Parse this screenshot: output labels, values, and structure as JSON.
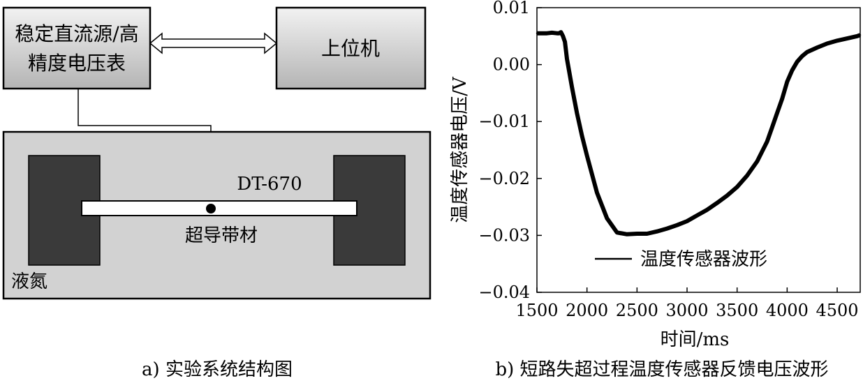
{
  "diagram": {
    "source_box_line1": "稳定直流源/高",
    "source_box_line2": "精度电压表",
    "host_box": "上位机",
    "sensor_label": "DT-670",
    "tape_label": "超导带材",
    "bath_label": "液氮",
    "caption": "a) 实验系统结构图"
  },
  "chart_caption": "b) 短路失超过程温度传感器反馈电压波形",
  "chart_data": {
    "type": "line",
    "xlabel": "时间/ms",
    "ylabel": "温度传感器电压/V",
    "xlim": [
      1500,
      4730
    ],
    "ylim": [
      -0.04,
      0.01
    ],
    "xticks": [
      1500,
      2000,
      2500,
      3000,
      3500,
      4000,
      4500
    ],
    "yticks": [
      0.01,
      0.0,
      -0.01,
      -0.02,
      -0.03,
      -0.04
    ],
    "ytick_labels": [
      "0.01",
      "0.00",
      "−0.01",
      "−0.02",
      "−0.03",
      "−0.04"
    ],
    "legend": "top-inside-bottom-right",
    "grid": false,
    "series": [
      {
        "name": "温度传感器波形",
        "color": "#000000",
        "x": [
          1500,
          1550,
          1600,
          1650,
          1700,
          1720,
          1740,
          1760,
          1780,
          1800,
          1820,
          1850,
          1900,
          1950,
          2000,
          2100,
          2200,
          2300,
          2400,
          2500,
          2600,
          2700,
          2800,
          2900,
          3000,
          3100,
          3200,
          3300,
          3400,
          3500,
          3600,
          3700,
          3800,
          3850,
          3900,
          3950,
          4000,
          4050,
          4100,
          4150,
          4200,
          4300,
          4400,
          4500,
          4600,
          4700,
          4730
        ],
        "y": [
          0.0055,
          0.0055,
          0.0055,
          0.0056,
          0.0055,
          0.0055,
          0.0057,
          0.005,
          0.004,
          0.001,
          -0.001,
          -0.004,
          -0.0085,
          -0.0125,
          -0.016,
          -0.0225,
          -0.027,
          -0.0295,
          -0.0298,
          -0.0297,
          -0.0297,
          -0.0293,
          -0.0288,
          -0.0282,
          -0.0275,
          -0.0265,
          -0.0255,
          -0.0243,
          -0.023,
          -0.0215,
          -0.0195,
          -0.017,
          -0.0135,
          -0.011,
          -0.0085,
          -0.006,
          -0.003,
          -0.001,
          0.0005,
          0.0015,
          0.0022,
          0.003,
          0.0037,
          0.0042,
          0.0046,
          0.005,
          0.0052
        ]
      }
    ]
  }
}
